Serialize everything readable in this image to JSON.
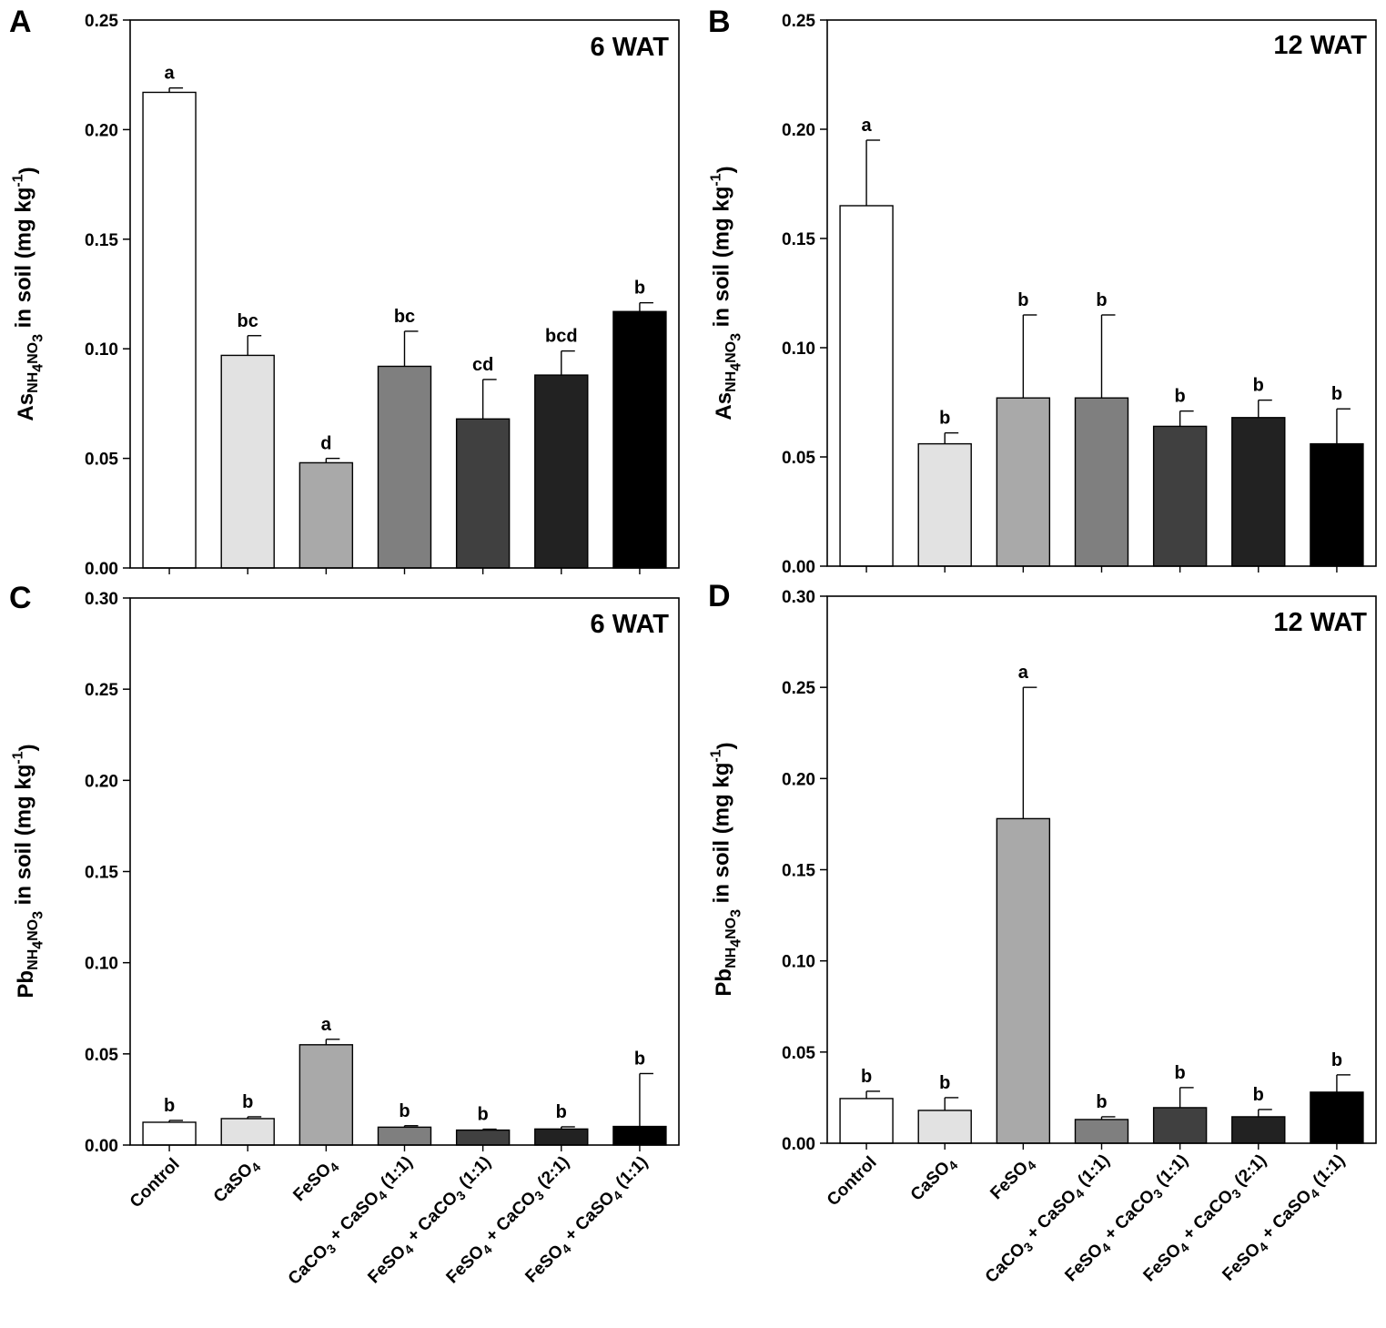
{
  "chart_data": [
    {
      "type": "bar",
      "panel_letter": "A",
      "title": "6 WAT",
      "ylabel": "As_{NH_4NO_3} in soil (mg kg^{-1})",
      "ylim": [
        0,
        0.25
      ],
      "yticks": [
        "0.00",
        "0.05",
        "0.10",
        "0.15",
        "0.20",
        "0.25"
      ],
      "xlabel": "",
      "x_tick_labels_shown": false,
      "categories": [
        "Control",
        "CaSO_4",
        "FeSO_4",
        "CaCO_3 + CaSO_4 (1:1)",
        "FeSO_4 + CaCO_3 (1:1)",
        "FeSO_4 + CaCO_3 (2:1)",
        "FeSO_4 + CaSO_4 (1:1)"
      ],
      "values": [
        0.217,
        0.097,
        0.048,
        0.092,
        0.068,
        0.088,
        0.117
      ],
      "errors": [
        0.002,
        0.009,
        0.002,
        0.016,
        0.018,
        0.011,
        0.004
      ],
      "significance": [
        "a",
        "bc",
        "d",
        "bc",
        "cd",
        "bcd",
        "b"
      ],
      "bar_colors": [
        "#ffffff",
        "#e2e2e2",
        "#a9a9a9",
        "#7f7f7f",
        "#404040",
        "#222222",
        "#000000"
      ]
    },
    {
      "type": "bar",
      "panel_letter": "B",
      "title": "12 WAT",
      "ylabel": "As_{NH_4NO_3} in soil (mg kg^{-1})",
      "ylim": [
        0,
        0.25
      ],
      "yticks": [
        "0.00",
        "0.05",
        "0.10",
        "0.15",
        "0.20",
        "0.25"
      ],
      "xlabel": "",
      "x_tick_labels_shown": false,
      "categories": [
        "Control",
        "CaSO_4",
        "FeSO_4",
        "CaCO_3 + CaSO_4 (1:1)",
        "FeSO_4 + CaCO_3 (1:1)",
        "FeSO_4 + CaCO_3 (2:1)",
        "FeSO_4 + CaSO_4 (1:1)"
      ],
      "values": [
        0.165,
        0.056,
        0.077,
        0.077,
        0.064,
        0.068,
        0.056
      ],
      "errors": [
        0.03,
        0.005,
        0.038,
        0.038,
        0.007,
        0.008,
        0.016
      ],
      "significance": [
        "a",
        "b",
        "b",
        "b",
        "b",
        "b",
        "b"
      ],
      "bar_colors": [
        "#ffffff",
        "#e2e2e2",
        "#a9a9a9",
        "#7f7f7f",
        "#404040",
        "#222222",
        "#000000"
      ]
    },
    {
      "type": "bar",
      "panel_letter": "C",
      "title": "6 WAT",
      "ylabel": "Pb_{NH_4NO_3} in soil (mg kg^{-1})",
      "ylim": [
        0,
        0.3
      ],
      "yticks": [
        "0.00",
        "0.05",
        "0.10",
        "0.15",
        "0.20",
        "0.25",
        "0.30"
      ],
      "xlabel": "",
      "x_tick_labels_shown": true,
      "categories": [
        "Control",
        "CaSO_4",
        "FeSO_4",
        "CaCO_3 + CaSO_4 (1:1)",
        "FeSO_4 + CaCO_3 (1:1)",
        "FeSO_4 + CaCO_3 (2:1)",
        "FeSO_4 + CaSO_4 (1:1)"
      ],
      "values": [
        0.0125,
        0.0145,
        0.055,
        0.0098,
        0.0082,
        0.0088,
        0.0102
      ],
      "errors": [
        0.001,
        0.001,
        0.003,
        0.0008,
        0.0005,
        0.0012,
        0.029
      ],
      "significance": [
        "b",
        "b",
        "a",
        "b",
        "b",
        "b",
        "b"
      ],
      "bar_colors": [
        "#ffffff",
        "#e2e2e2",
        "#a9a9a9",
        "#7f7f7f",
        "#404040",
        "#222222",
        "#000000"
      ]
    },
    {
      "type": "bar",
      "panel_letter": "D",
      "title": "12 WAT",
      "ylabel": "Pb_{NH_4NO_3} in soil (mg kg^{-1})",
      "ylim": [
        0,
        0.3
      ],
      "yticks": [
        "0.00",
        "0.05",
        "0.10",
        "0.15",
        "0.20",
        "0.25",
        "0.30"
      ],
      "xlabel": "",
      "x_tick_labels_shown": true,
      "categories": [
        "Control",
        "CaSO_4",
        "FeSO_4",
        "CaCO_3 + CaSO_4 (1:1)",
        "FeSO_4 + CaCO_3 (1:1)",
        "FeSO_4 + CaCO_3 (2:1)",
        "FeSO_4 + CaSO_4 (1:1)"
      ],
      "values": [
        0.0245,
        0.018,
        0.178,
        0.013,
        0.0195,
        0.0145,
        0.028
      ],
      "errors": [
        0.004,
        0.007,
        0.072,
        0.0015,
        0.011,
        0.004,
        0.0095
      ],
      "significance": [
        "b",
        "b",
        "a",
        "b",
        "b",
        "b",
        "b"
      ],
      "bar_colors": [
        "#ffffff",
        "#e2e2e2",
        "#a9a9a9",
        "#7f7f7f",
        "#404040",
        "#222222",
        "#000000"
      ]
    }
  ]
}
